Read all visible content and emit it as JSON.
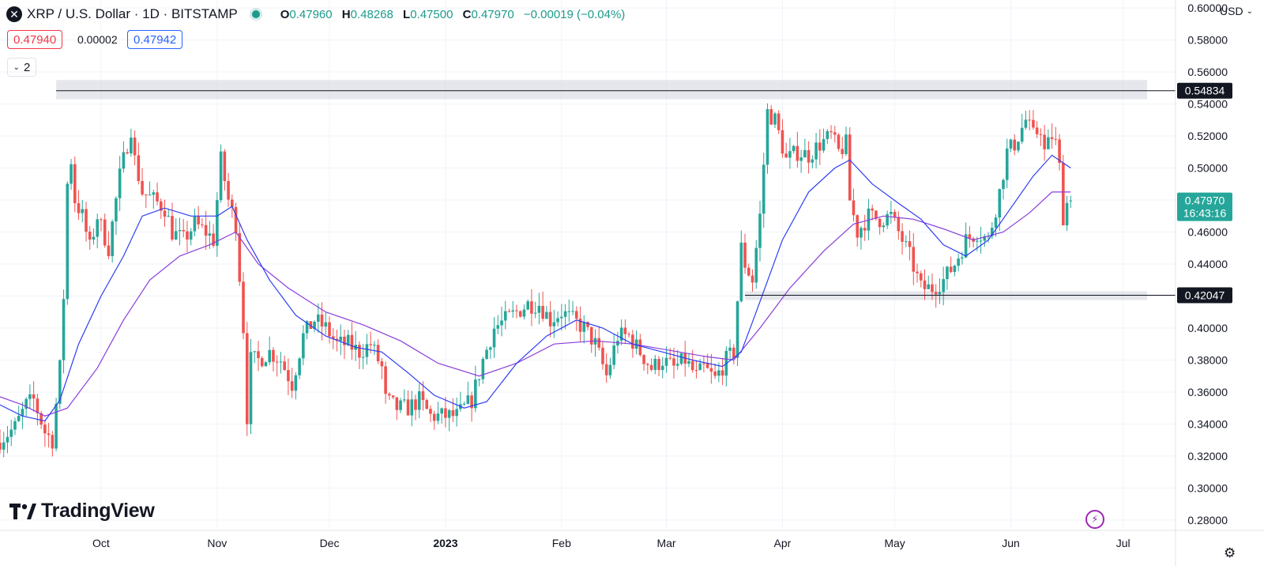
{
  "header": {
    "symbol_title": "XRP / U.S. Dollar · 1D · BITSTAMP",
    "logo_glyph": "✕",
    "ohlc": [
      {
        "key": "O",
        "value": "0.47960"
      },
      {
        "key": "H",
        "value": "0.48268"
      },
      {
        "key": "L",
        "value": "0.47500"
      },
      {
        "key": "C",
        "value": "0.47970"
      }
    ],
    "change": "−0.00019 (−0.04%)"
  },
  "quote": {
    "bid": "0.47940",
    "spread": "0.00002",
    "ask": "0.47942"
  },
  "indicators": {
    "count": "2",
    "chevron": "⌄"
  },
  "currency": {
    "label": "USD",
    "chevron": "⌄"
  },
  "brand": {
    "name": "TradingView"
  },
  "price_tags": {
    "resistance": "0.54834",
    "support": "0.42047",
    "last": "0.47970",
    "countdown": "16:43:16"
  },
  "colors": {
    "up": "#26a69a",
    "down": "#ef5350",
    "ma_fast": "#2d3df2",
    "ma_slow": "#8a3ddb",
    "last_tag": "#26a69a"
  },
  "icons": {
    "bolt": "⚡",
    "settings": "⚙"
  },
  "chart_data": {
    "type": "candlestick",
    "y_ticks": [
      "0.60000",
      "0.58000",
      "0.56000",
      "0.54000",
      "0.52000",
      "0.50000",
      "0.48000",
      "0.46000",
      "0.44000",
      "0.42000",
      "0.40000",
      "0.38000",
      "0.36000",
      "0.34000",
      "0.32000",
      "0.30000",
      "0.28000"
    ],
    "ylim": [
      0.275,
      0.605
    ],
    "x_ticks": [
      {
        "label": "Oct",
        "date": "2022-10-01"
      },
      {
        "label": "Nov",
        "date": "2022-11-01"
      },
      {
        "label": "Dec",
        "date": "2022-12-01"
      },
      {
        "label": "2023",
        "date": "2023-01-01",
        "bold": true
      },
      {
        "label": "Feb",
        "date": "2023-02-01"
      },
      {
        "label": "Mar",
        "date": "2023-03-01"
      },
      {
        "label": "Apr",
        "date": "2023-04-01"
      },
      {
        "label": "May",
        "date": "2023-05-01"
      },
      {
        "label": "Jun",
        "date": "2023-06-01"
      },
      {
        "label": "Jul",
        "date": "2023-07-01"
      }
    ],
    "xlim": [
      "2022-09-04",
      "2023-07-15"
    ],
    "levels": [
      {
        "name": "resistance",
        "value": 0.54834,
        "zone": [
          0.543,
          0.555
        ]
      },
      {
        "name": "support",
        "value": 0.42047,
        "zone": [
          0.4175,
          0.423
        ]
      }
    ],
    "close_path": [
      [
        "2022-09-04",
        0.33
      ],
      [
        "2022-09-08",
        0.338
      ],
      [
        "2022-09-11",
        0.352
      ],
      [
        "2022-09-13",
        0.355
      ],
      [
        "2022-09-16",
        0.335
      ],
      [
        "2022-09-18",
        0.33
      ],
      [
        "2022-09-20",
        0.375
      ],
      [
        "2022-09-21",
        0.42
      ],
      [
        "2022-09-22",
        0.49
      ],
      [
        "2022-09-23",
        0.505
      ],
      [
        "2022-09-24",
        0.48
      ],
      [
        "2022-09-26",
        0.47
      ],
      [
        "2022-09-28",
        0.45
      ],
      [
        "2022-09-30",
        0.47
      ],
      [
        "2022-10-03",
        0.45
      ],
      [
        "2022-10-06",
        0.495
      ],
      [
        "2022-10-09",
        0.525
      ],
      [
        "2022-10-10",
        0.505
      ],
      [
        "2022-10-12",
        0.485
      ],
      [
        "2022-10-15",
        0.48
      ],
      [
        "2022-10-18",
        0.475
      ],
      [
        "2022-10-20",
        0.46
      ],
      [
        "2022-10-23",
        0.455
      ],
      [
        "2022-10-26",
        0.465
      ],
      [
        "2022-10-29",
        0.46
      ],
      [
        "2022-10-31",
        0.455
      ],
      [
        "2022-11-02",
        0.505
      ],
      [
        "2022-11-04",
        0.48
      ],
      [
        "2022-11-06",
        0.465
      ],
      [
        "2022-11-08",
        0.4
      ],
      [
        "2022-11-09",
        0.345
      ],
      [
        "2022-11-10",
        0.38
      ],
      [
        "2022-11-12",
        0.38
      ],
      [
        "2022-11-15",
        0.385
      ],
      [
        "2022-11-18",
        0.38
      ],
      [
        "2022-11-21",
        0.365
      ],
      [
        "2022-11-24",
        0.395
      ],
      [
        "2022-11-27",
        0.405
      ],
      [
        "2022-11-30",
        0.4
      ],
      [
        "2022-12-03",
        0.39
      ],
      [
        "2022-12-06",
        0.39
      ],
      [
        "2022-12-09",
        0.385
      ],
      [
        "2022-12-12",
        0.39
      ],
      [
        "2022-12-15",
        0.375
      ],
      [
        "2022-12-16",
        0.355
      ],
      [
        "2022-12-19",
        0.35
      ],
      [
        "2022-12-22",
        0.35
      ],
      [
        "2022-12-25",
        0.355
      ],
      [
        "2022-12-28",
        0.345
      ],
      [
        "2023-01-01",
        0.345
      ],
      [
        "2023-01-04",
        0.345
      ],
      [
        "2023-01-08",
        0.355
      ],
      [
        "2023-01-11",
        0.38
      ],
      [
        "2023-01-14",
        0.4
      ],
      [
        "2023-01-17",
        0.405
      ],
      [
        "2023-01-20",
        0.41
      ],
      [
        "2023-01-23",
        0.415
      ],
      [
        "2023-01-26",
        0.415
      ],
      [
        "2023-01-29",
        0.405
      ],
      [
        "2023-02-01",
        0.41
      ],
      [
        "2023-02-04",
        0.405
      ],
      [
        "2023-02-07",
        0.4
      ],
      [
        "2023-02-10",
        0.39
      ],
      [
        "2023-02-13",
        0.37
      ],
      [
        "2023-02-16",
        0.395
      ],
      [
        "2023-02-19",
        0.395
      ],
      [
        "2023-02-22",
        0.385
      ],
      [
        "2023-02-25",
        0.375
      ],
      [
        "2023-02-28",
        0.38
      ],
      [
        "2023-03-03",
        0.375
      ],
      [
        "2023-03-06",
        0.38
      ],
      [
        "2023-03-09",
        0.37
      ],
      [
        "2023-03-11",
        0.375
      ],
      [
        "2023-03-14",
        0.368
      ],
      [
        "2023-03-17",
        0.38
      ],
      [
        "2023-03-19",
        0.385
      ],
      [
        "2023-03-21",
        0.45
      ],
      [
        "2023-03-22",
        0.44
      ],
      [
        "2023-03-24",
        0.43
      ],
      [
        "2023-03-26",
        0.47
      ],
      [
        "2023-03-28",
        0.535
      ],
      [
        "2023-03-30",
        0.53
      ],
      [
        "2023-04-02",
        0.505
      ],
      [
        "2023-04-05",
        0.51
      ],
      [
        "2023-04-08",
        0.508
      ],
      [
        "2023-04-11",
        0.515
      ],
      [
        "2023-04-14",
        0.52
      ],
      [
        "2023-04-16",
        0.51
      ],
      [
        "2023-04-18",
        0.515
      ],
      [
        "2023-04-19",
        0.48
      ],
      [
        "2023-04-21",
        0.46
      ],
      [
        "2023-04-24",
        0.47
      ],
      [
        "2023-04-27",
        0.468
      ],
      [
        "2023-04-30",
        0.47
      ],
      [
        "2023-05-02",
        0.46
      ],
      [
        "2023-05-05",
        0.445
      ],
      [
        "2023-05-08",
        0.425
      ],
      [
        "2023-05-11",
        0.425
      ],
      [
        "2023-05-14",
        0.43
      ],
      [
        "2023-05-17",
        0.44
      ],
      [
        "2023-05-20",
        0.455
      ],
      [
        "2023-05-23",
        0.46
      ],
      [
        "2023-05-26",
        0.455
      ],
      [
        "2023-05-29",
        0.485
      ],
      [
        "2023-05-31",
        0.51
      ],
      [
        "2023-06-02",
        0.515
      ],
      [
        "2023-06-05",
        0.53
      ],
      [
        "2023-06-07",
        0.52
      ],
      [
        "2023-06-09",
        0.525
      ],
      [
        "2023-06-10",
        0.51
      ],
      [
        "2023-06-11",
        0.515
      ],
      [
        "2023-06-12",
        0.52
      ],
      [
        "2023-06-13",
        0.515
      ],
      [
        "2023-06-14",
        0.5
      ],
      [
        "2023-06-15",
        0.47
      ],
      [
        "2023-06-16",
        0.478
      ],
      [
        "2023-06-17",
        0.4797
      ]
    ],
    "last": {
      "date": "2023-06-17",
      "open": 0.4796,
      "high": 0.48268,
      "low": 0.475,
      "close": 0.4797
    },
    "ma_fast": {
      "values": [
        [
          "2022-09-04",
          0.352
        ],
        [
          "2022-09-10",
          0.345
        ],
        [
          "2022-09-16",
          0.342
        ],
        [
          "2022-09-20",
          0.355
        ],
        [
          "2022-09-25",
          0.39
        ],
        [
          "2022-10-01",
          0.42
        ],
        [
          "2022-10-07",
          0.445
        ],
        [
          "2022-10-12",
          0.47
        ],
        [
          "2022-10-18",
          0.475
        ],
        [
          "2022-10-25",
          0.47
        ],
        [
          "2022-11-01",
          0.47
        ],
        [
          "2022-11-05",
          0.476
        ],
        [
          "2022-11-09",
          0.455
        ],
        [
          "2022-11-15",
          0.43
        ],
        [
          "2022-11-22",
          0.408
        ],
        [
          "2022-11-30",
          0.395
        ],
        [
          "2022-12-08",
          0.388
        ],
        [
          "2022-12-15",
          0.385
        ],
        [
          "2022-12-22",
          0.372
        ],
        [
          "2022-12-29",
          0.358
        ],
        [
          "2023-01-06",
          0.35
        ],
        [
          "2023-01-12",
          0.354
        ],
        [
          "2023-01-20",
          0.378
        ],
        [
          "2023-01-28",
          0.395
        ],
        [
          "2023-02-05",
          0.405
        ],
        [
          "2023-02-12",
          0.4
        ],
        [
          "2023-02-20",
          0.39
        ],
        [
          "2023-02-28",
          0.385
        ],
        [
          "2023-03-08",
          0.38
        ],
        [
          "2023-03-16",
          0.376
        ],
        [
          "2023-03-21",
          0.385
        ],
        [
          "2023-03-25",
          0.41
        ],
        [
          "2023-04-01",
          0.455
        ],
        [
          "2023-04-08",
          0.485
        ],
        [
          "2023-04-15",
          0.5
        ],
        [
          "2023-04-19",
          0.505
        ],
        [
          "2023-04-25",
          0.49
        ],
        [
          "2023-05-02",
          0.478
        ],
        [
          "2023-05-08",
          0.468
        ],
        [
          "2023-05-14",
          0.452
        ],
        [
          "2023-05-20",
          0.445
        ],
        [
          "2023-05-26",
          0.455
        ],
        [
          "2023-06-01",
          0.475
        ],
        [
          "2023-06-07",
          0.495
        ],
        [
          "2023-06-12",
          0.508
        ],
        [
          "2023-06-17",
          0.5
        ]
      ]
    },
    "ma_slow": {
      "values": [
        [
          "2022-09-04",
          0.357
        ],
        [
          "2022-09-10",
          0.352
        ],
        [
          "2022-09-16",
          0.345
        ],
        [
          "2022-09-22",
          0.35
        ],
        [
          "2022-09-30",
          0.375
        ],
        [
          "2022-10-07",
          0.405
        ],
        [
          "2022-10-14",
          0.43
        ],
        [
          "2022-10-22",
          0.445
        ],
        [
          "2022-10-30",
          0.452
        ],
        [
          "2022-11-06",
          0.46
        ],
        [
          "2022-11-12",
          0.44
        ],
        [
          "2022-11-20",
          0.425
        ],
        [
          "2022-11-30",
          0.41
        ],
        [
          "2022-12-10",
          0.402
        ],
        [
          "2022-12-20",
          0.392
        ],
        [
          "2022-12-30",
          0.378
        ],
        [
          "2023-01-10",
          0.37
        ],
        [
          "2023-01-20",
          0.378
        ],
        [
          "2023-01-30",
          0.39
        ],
        [
          "2023-02-10",
          0.392
        ],
        [
          "2023-02-20",
          0.39
        ],
        [
          "2023-03-02",
          0.386
        ],
        [
          "2023-03-12",
          0.382
        ],
        [
          "2023-03-19",
          0.38
        ],
        [
          "2023-03-26",
          0.4
        ],
        [
          "2023-04-03",
          0.425
        ],
        [
          "2023-04-12",
          0.448
        ],
        [
          "2023-04-20",
          0.465
        ],
        [
          "2023-04-28",
          0.47
        ],
        [
          "2023-05-06",
          0.468
        ],
        [
          "2023-05-14",
          0.462
        ],
        [
          "2023-05-22",
          0.455
        ],
        [
          "2023-05-30",
          0.46
        ],
        [
          "2023-06-06",
          0.472
        ],
        [
          "2023-06-12",
          0.485
        ],
        [
          "2023-06-17",
          0.485
        ]
      ]
    }
  }
}
